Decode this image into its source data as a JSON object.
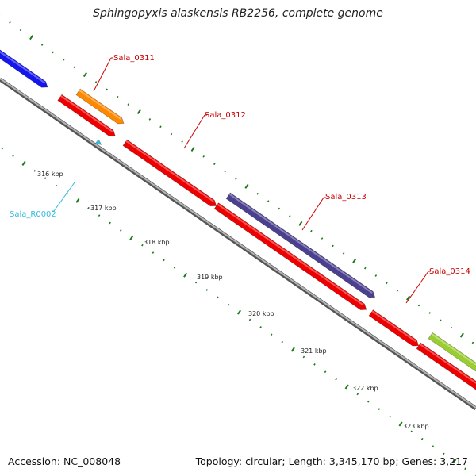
{
  "title": "Sphingopyxis alaskensis RB2256, complete genome",
  "footer": {
    "accession": "Accession: NC_008048",
    "summary": "Topology: circular; Length: 3,345,170 bp; Genes: 3,217"
  },
  "colors": {
    "backbone": "#7f7f7f",
    "tick": "#1a7a1a",
    "label_cds": "#cc0000",
    "label_rna": "#33bbdd"
  },
  "scale_labels": [
    "316 kbp",
    "317 kbp",
    "318 kbp",
    "319 kbp",
    "320 kbp",
    "321 kbp",
    "322 kbp",
    "323 kbp"
  ],
  "features": [
    {
      "name": "",
      "color": "#1515ee",
      "track": "forward-outer"
    },
    {
      "name": "",
      "color": "#ff8800",
      "track": "forward-outer"
    },
    {
      "name": "",
      "color": "#ee0000",
      "track": "forward-inner"
    },
    {
      "name": "",
      "color": "#ee0000",
      "track": "forward-inner"
    },
    {
      "name": "",
      "color": "#4b3f8f",
      "track": "forward-outer"
    },
    {
      "name": "",
      "color": "#ee0000",
      "track": "forward-inner"
    },
    {
      "name": "",
      "color": "#ee0000",
      "track": "forward-inner"
    },
    {
      "name": "",
      "color": "#ee0000",
      "track": "forward-inner"
    },
    {
      "name": "",
      "color": "#9acd32",
      "track": "forward-outer"
    },
    {
      "name": "",
      "color": "#33bbdd",
      "track": "reverse"
    }
  ],
  "labels": [
    {
      "text": "Sala_0311",
      "color": "#cc0000"
    },
    {
      "text": "Sala_0312",
      "color": "#cc0000"
    },
    {
      "text": "Sala_0313",
      "color": "#cc0000"
    },
    {
      "text": "Sala_0314",
      "color": "#cc0000"
    },
    {
      "text": "Sala_R0002",
      "color": "#33bbdd"
    }
  ]
}
